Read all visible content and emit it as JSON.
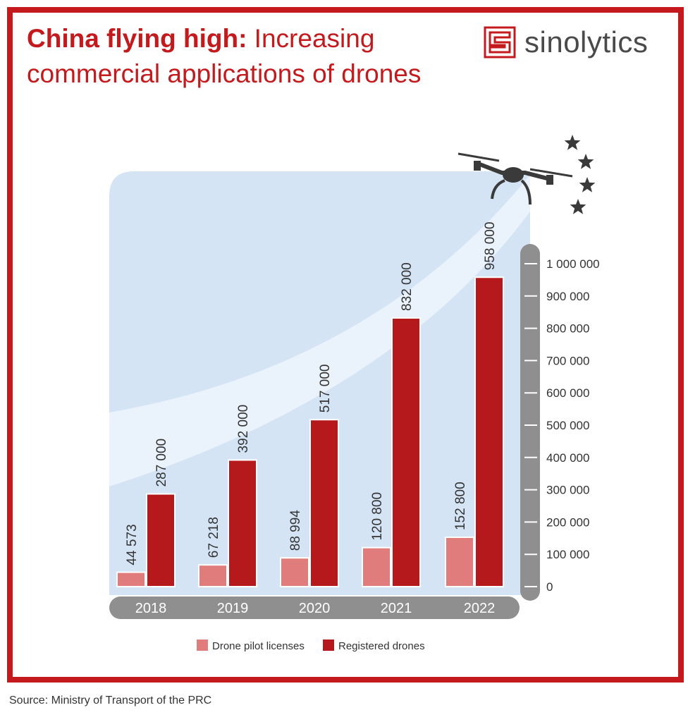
{
  "title": {
    "bold": "China flying high:",
    "regular": " Increasing commercial applications of drones"
  },
  "brand": {
    "name": "sinolytics",
    "logo_icon": "maze-square-logo"
  },
  "source": "Source: Ministry of Transport of the PRC",
  "colors": {
    "frame": "#c41a1d",
    "licenses": "#e07c7c",
    "registered": "#b5191c",
    "panel": "#d4e4f5",
    "axis": "#8f8f8f"
  },
  "chart_data": {
    "type": "bar",
    "categories": [
      "2018",
      "2019",
      "2020",
      "2021",
      "2022"
    ],
    "series": [
      {
        "name": "Drone pilot licenses",
        "values": [
          44573,
          67218,
          88994,
          120800,
          152800
        ],
        "labels": [
          "44 573",
          "67 218",
          "88 994",
          "120 800",
          "152 800"
        ]
      },
      {
        "name": "Registered drones",
        "values": [
          287000,
          392000,
          517000,
          832000,
          958000
        ],
        "labels": [
          "287 000",
          "392 000",
          "517 000",
          "832 000",
          "958 000"
        ]
      }
    ],
    "ylim": [
      0,
      1000000
    ],
    "yticks": [
      0,
      100000,
      200000,
      300000,
      400000,
      500000,
      600000,
      700000,
      800000,
      900000,
      1000000
    ],
    "ytick_labels": [
      "0",
      "100 000",
      "200 000",
      "300 000",
      "400 000",
      "500 000",
      "600 000",
      "700 000",
      "800 000",
      "900 000",
      "1 000 000"
    ],
    "y_axis_position": "right",
    "legend": "bottom-center",
    "grid": false,
    "decorations": [
      "drone-icon",
      "star-icon"
    ]
  }
}
